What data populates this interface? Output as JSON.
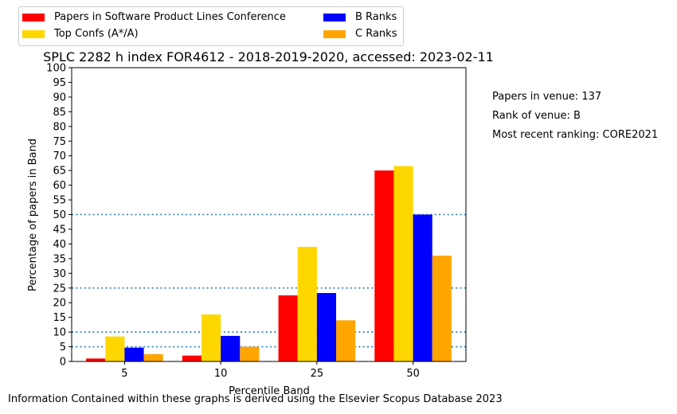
{
  "chart_data": {
    "type": "bar",
    "title": "SPLC 2282 h index FOR4612 - 2018-2019-2020, accessed: 2023-02-11",
    "xlabel": "Percentile Band",
    "ylabel": "Percentage of papers in Band",
    "categories": [
      "5",
      "10",
      "25",
      "50"
    ],
    "ylim": [
      0,
      100
    ],
    "yticks": [
      0,
      5,
      10,
      15,
      20,
      25,
      30,
      35,
      40,
      45,
      50,
      55,
      60,
      65,
      70,
      75,
      80,
      85,
      90,
      95,
      100
    ],
    "reference_lines": [
      5,
      10,
      25,
      50
    ],
    "reference_line_color": "#1f77b4",
    "legend_position": "top-left, above plot",
    "series": [
      {
        "name": "Papers in Software Product Lines Conference",
        "color": "#ff0000",
        "values": [
          1.0,
          2.0,
          22.5,
          65.0
        ]
      },
      {
        "name": "Top Confs (A*/A)",
        "color": "#ffd700",
        "values": [
          8.5,
          16.0,
          39.0,
          66.5
        ]
      },
      {
        "name": "B Ranks",
        "color": "#0000ff",
        "values": [
          4.7,
          8.7,
          23.3,
          50.0
        ]
      },
      {
        "name": "C Ranks",
        "color": "#ffa500",
        "values": [
          2.5,
          5.0,
          14.0,
          36.0
        ]
      }
    ]
  },
  "info": {
    "papers_in_venue": "Papers in venue: 137",
    "rank_of_venue": "Rank of venue: B",
    "recent_ranking": "Most recent ranking: CORE2021"
  },
  "footer": "Information Contained within these graphs is derived using the Elsevier Scopus Database 2023"
}
